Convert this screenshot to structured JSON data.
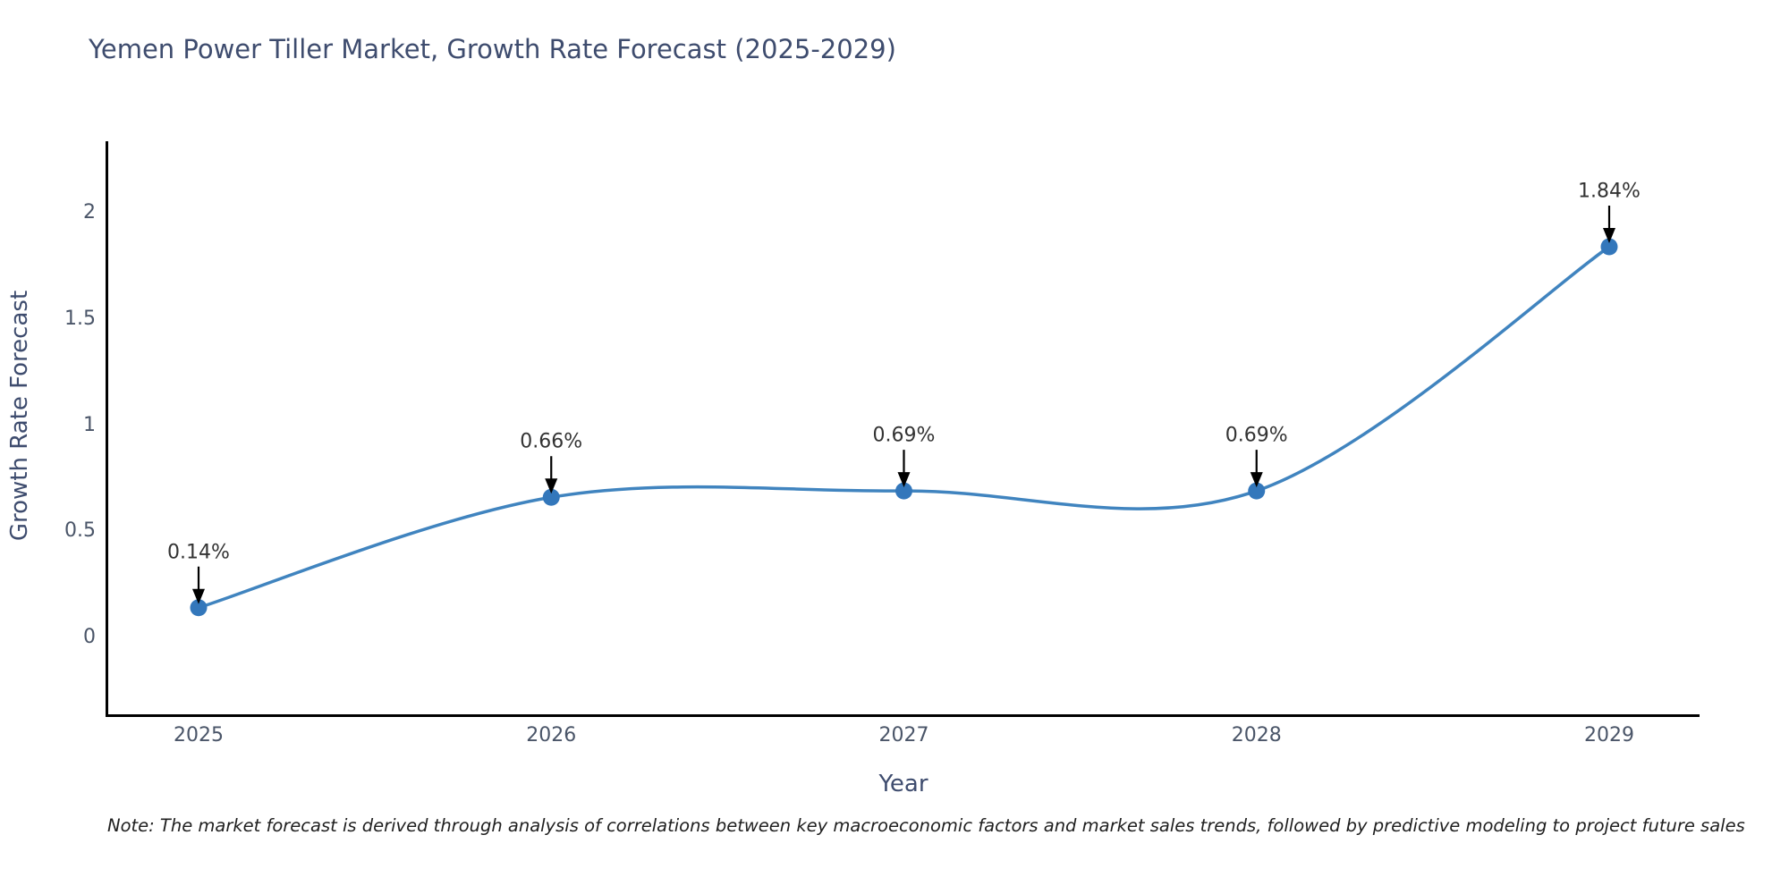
{
  "header": {
    "title": "Yemen Power Tiller Market, Growth Rate Forecast (2025-2029)"
  },
  "chart_data": {
    "type": "line",
    "title": "Yemen Power Tiller Market, Growth Rate Forecast (2025-2029)",
    "x": [
      2025,
      2026,
      2027,
      2028,
      2029
    ],
    "values": [
      0.14,
      0.66,
      0.69,
      0.69,
      1.84
    ],
    "point_labels": [
      "0.14%",
      "0.66%",
      "0.69%",
      "0.69%",
      "1.84%"
    ],
    "xtick_labels": [
      "2025",
      "2026",
      "2027",
      "2028",
      "2029"
    ],
    "ytick_values": [
      0,
      0.5,
      1,
      1.5,
      2
    ],
    "ytick_labels": [
      "0",
      "0.5",
      "1",
      "1.5",
      "2"
    ],
    "xlabel": "Year",
    "ylabel": "Growth Rate Forecast",
    "xlim": [
      2024.74,
      2029.26
    ],
    "ylim": [
      -0.37,
      2.33
    ],
    "grid": false,
    "legend": "none",
    "line_shape": "spline",
    "markers": true
  },
  "note": "Note: The market forecast is derived through analysis of correlations between key macroeconomic factors and market sales trends, followed by predictive modeling to project future sales",
  "colors": {
    "background": "#ffffff",
    "line": "#4084bf",
    "marker": "#3377bb",
    "axis": "#000000",
    "arrow": "#000000",
    "title_text": "#3e4c6e",
    "tick_text": "#4a5568",
    "annotation_text": "#333333",
    "note_text": "#1f1f1f"
  }
}
